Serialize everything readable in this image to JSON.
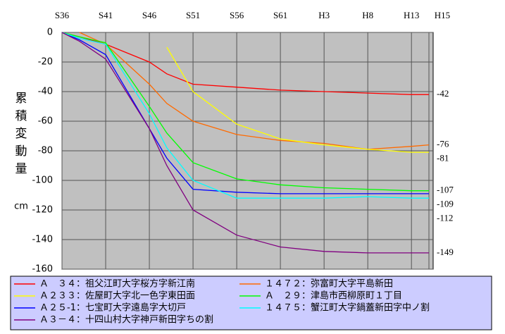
{
  "chart_data": {
    "type": "line",
    "y_label": "累積変動量",
    "y_unit": "cm",
    "x": [
      1961,
      1963,
      1966,
      1971,
      1973,
      1976,
      1981,
      1986,
      1991,
      1996,
      2001,
      2003
    ],
    "xlim": [
      1961,
      2003
    ],
    "xticks": [
      {
        "value": 1961,
        "label": "S36"
      },
      {
        "value": 1966,
        "label": "S41"
      },
      {
        "value": 1971,
        "label": "S46"
      },
      {
        "value": 1976,
        "label": "S51"
      },
      {
        "value": 1981,
        "label": "S56"
      },
      {
        "value": 1986,
        "label": "S61"
      },
      {
        "value": 1991,
        "label": "H3"
      },
      {
        "value": 1996,
        "label": "H8"
      },
      {
        "value": 2001,
        "label": "H13"
      },
      {
        "value": 2003,
        "label": "H15"
      }
    ],
    "ylim": [
      -160,
      0
    ],
    "yticks": [
      0,
      -20,
      -40,
      -60,
      -80,
      -100,
      -120,
      -140,
      -160
    ],
    "grid": true,
    "series": [
      {
        "name": "Ａ　３４：祖父江町大字桜方字新江南",
        "color": "#ff0000",
        "values": [
          0,
          -3,
          -8,
          -20,
          -28,
          -35,
          -37,
          -39,
          -40,
          -41,
          -42,
          -42
        ]
      },
      {
        "name": "１４７２：弥富町大字平島新田",
        "color": "#ff6a00",
        "values": [
          null,
          0,
          -8,
          -35,
          -48,
          -60,
          -69,
          -73,
          -75,
          -79,
          -77,
          -76
        ]
      },
      {
        "name": "Ａ２３３：佐屋町大字北一色字東田面",
        "color": "#ffff00",
        "values": [
          null,
          null,
          null,
          null,
          -10,
          -40,
          -62,
          -72,
          -76,
          -79,
          -81,
          -81
        ]
      },
      {
        "name": "Ａ　２９：津島市西柳原町１丁目",
        "color": "#00ff00",
        "values": [
          0,
          -3,
          -7,
          -50,
          -68,
          -88,
          -99,
          -103,
          -105,
          -106,
          -107,
          -107
        ]
      },
      {
        "name": "Ａ２５-1：七宝町大字遠島字大切戸",
        "color": "#0000ff",
        "values": [
          0,
          -5,
          -15,
          -65,
          -85,
          -106,
          -108,
          -109,
          -109,
          -109,
          -109,
          -109
        ]
      },
      {
        "name": "１４７５：蟹江町大字鍋蓋新田字中ノ割",
        "color": "#00ffff",
        "values": [
          0,
          -4,
          -8,
          -55,
          -78,
          -100,
          -112,
          -112,
          -112,
          -111,
          -112,
          -112
        ]
      },
      {
        "name": "Ａ３－４：十四山村大字神戸新田字ちの割",
        "color": "#800080",
        "values": [
          0,
          -6,
          -18,
          -65,
          -90,
          -120,
          -137,
          -145,
          -148,
          -149,
          -149,
          -149
        ]
      }
    ]
  }
}
